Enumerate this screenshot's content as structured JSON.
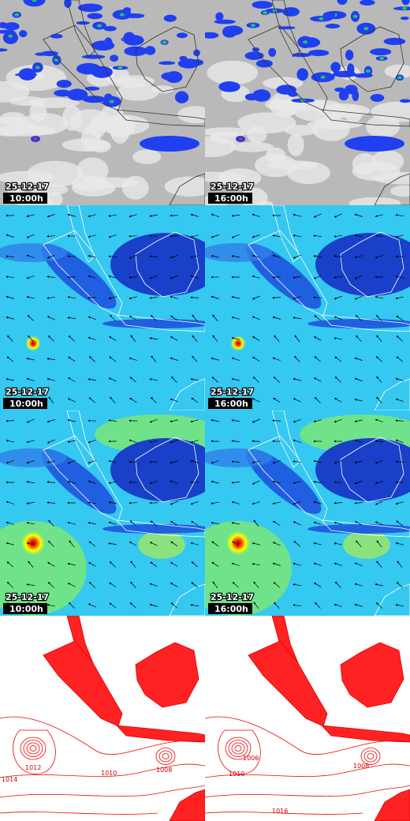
{
  "panels": [
    {
      "date": "25-12-17",
      "time": "10:00h"
    },
    {
      "date": "25-12-17",
      "time": "16:00h"
    },
    {
      "date": "25-12-17",
      "time": "10:00h"
    },
    {
      "date": "25-12-17",
      "time": "16:00h"
    },
    {
      "date": "25-12-17",
      "time": "10:00h"
    },
    {
      "date": "25-12-17",
      "time": "16:00h"
    }
  ],
  "pressure_panels": [
    {
      "contour_labels": [
        "1012",
        "1010",
        "1008",
        "1014"
      ]
    },
    {
      "contour_labels": [
        "1006",
        "1010",
        "1008",
        "1016"
      ]
    }
  ]
}
